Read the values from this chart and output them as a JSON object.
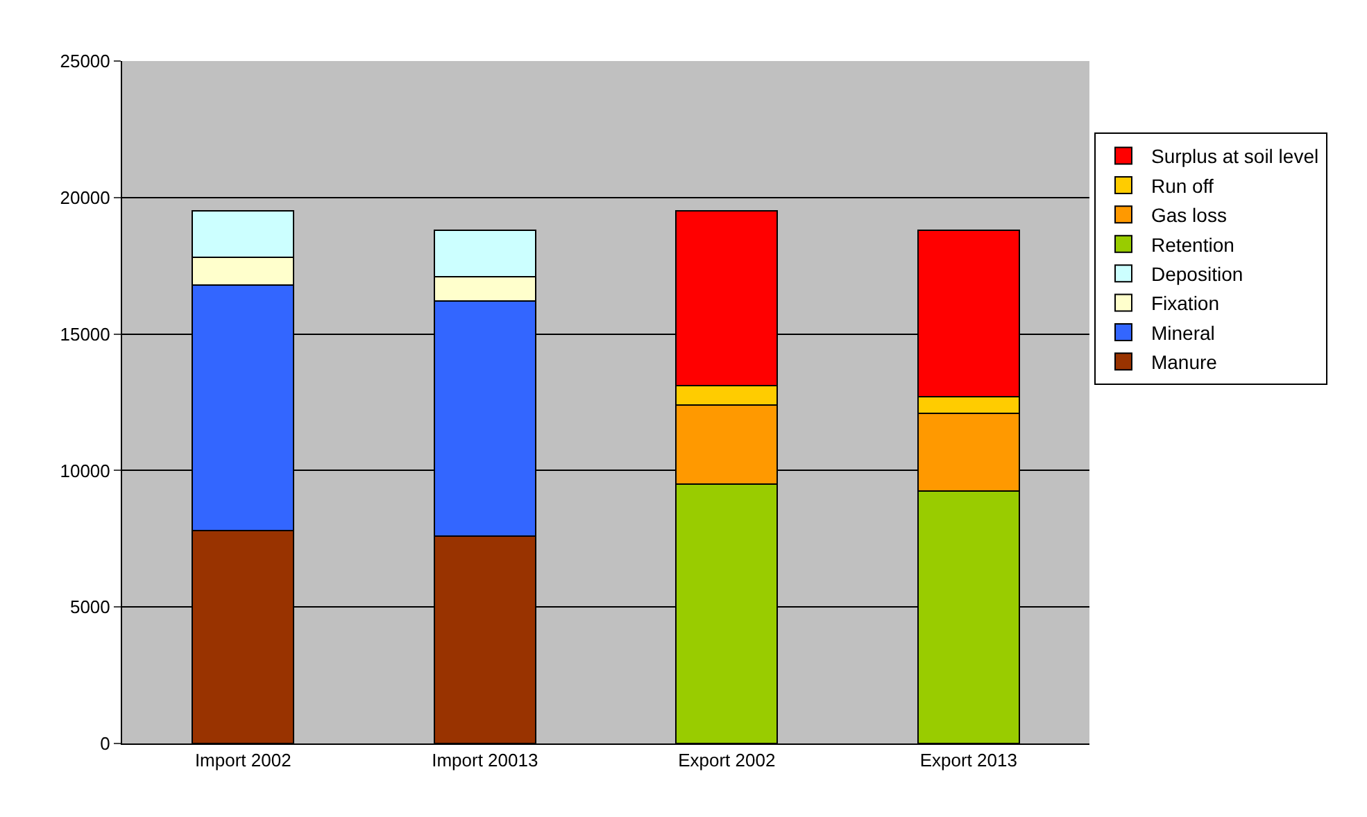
{
  "chart_data": {
    "type": "bar",
    "stacked": true,
    "categories": [
      "Import 2002",
      "Import 20013",
      "Export 2002",
      "Export 2013"
    ],
    "series": [
      {
        "name": "Manure",
        "color": "#993300",
        "values": [
          7800,
          7600,
          null,
          null
        ]
      },
      {
        "name": "Mineral",
        "color": "#3366ff",
        "values": [
          9000,
          8600,
          null,
          null
        ]
      },
      {
        "name": "Fixation",
        "color": "#ffffcc",
        "values": [
          1000,
          900,
          null,
          null
        ]
      },
      {
        "name": "Deposition",
        "color": "#ccffff",
        "values": [
          1700,
          1700,
          null,
          null
        ]
      },
      {
        "name": "Retention",
        "color": "#99cc00",
        "values": [
          null,
          null,
          9500,
          9250
        ]
      },
      {
        "name": "Gas loss",
        "color": "#ff9900",
        "values": [
          null,
          null,
          2900,
          2850
        ]
      },
      {
        "name": "Run off",
        "color": "#ffcc00",
        "values": [
          null,
          null,
          700,
          600
        ]
      },
      {
        "name": "Surplus at soil level",
        "color": "#ff0000",
        "values": [
          null,
          null,
          6400,
          6100
        ]
      }
    ],
    "ylim": [
      0,
      25000
    ],
    "yticks": [
      0,
      5000,
      10000,
      15000,
      20000,
      25000
    ],
    "grid": "y",
    "legend": "right"
  }
}
